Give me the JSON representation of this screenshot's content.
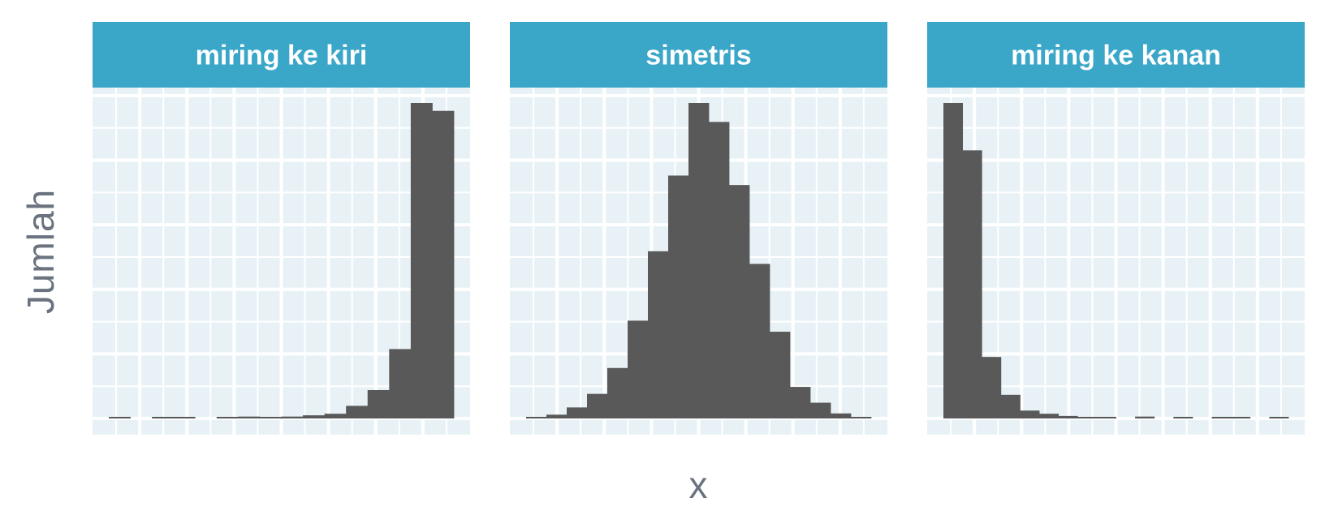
{
  "chart_data": {
    "type": "bar",
    "subtype": "histogram-facets",
    "xlabel": "x",
    "ylabel": "Jumlah",
    "colors": {
      "bar": "#595959",
      "strip": "#3aa6c8",
      "panel": "#e8f2f6",
      "grid": "#ffffff"
    },
    "panels": [
      {
        "name": "miring ke kiri",
        "values": [
          0.3,
          0,
          0.3,
          0.3,
          0,
          0.3,
          0.6,
          0.3,
          0.6,
          1,
          1.5,
          4,
          9,
          22,
          100,
          97.5
        ]
      },
      {
        "name": "simetris",
        "values": [
          0.4,
          1.2,
          3.5,
          7.8,
          16,
          31,
          53,
          77,
          100,
          94,
          74,
          49,
          27.5,
          10,
          5,
          1.6,
          0.5
        ]
      },
      {
        "name": "miring ke kanan",
        "values": [
          100,
          85,
          19.5,
          7.5,
          2.5,
          1.5,
          0.8,
          0.3,
          0.3,
          0,
          0.6,
          0,
          0.3,
          0,
          0.3,
          0.3,
          0,
          0.3
        ]
      }
    ]
  }
}
